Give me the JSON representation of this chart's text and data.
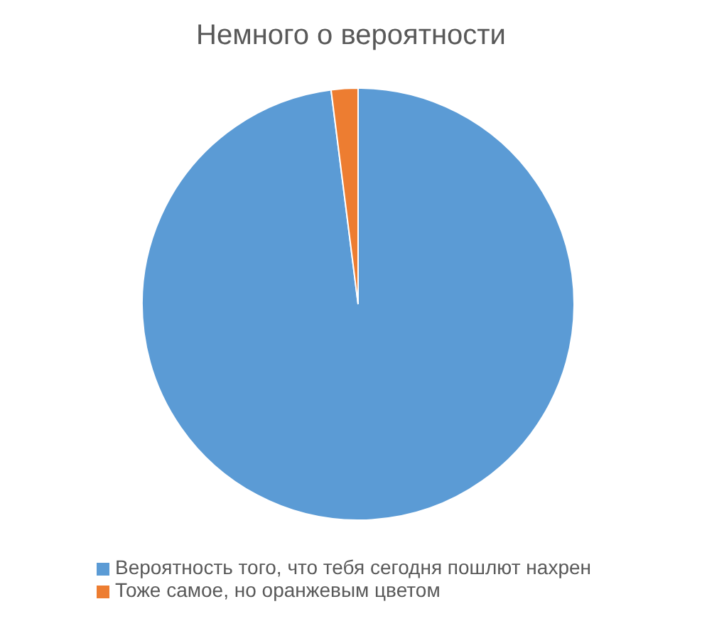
{
  "chart_data": {
    "type": "pie",
    "title": "Немного о вероятности",
    "categories": [
      "Вероятность того, что тебя сегодня пошлют нахрен",
      "Тоже самое, но оранжевым цветом"
    ],
    "values": [
      98,
      2
    ],
    "colors": [
      "#5b9bd5",
      "#ed7d31"
    ],
    "legend": "bottom"
  }
}
